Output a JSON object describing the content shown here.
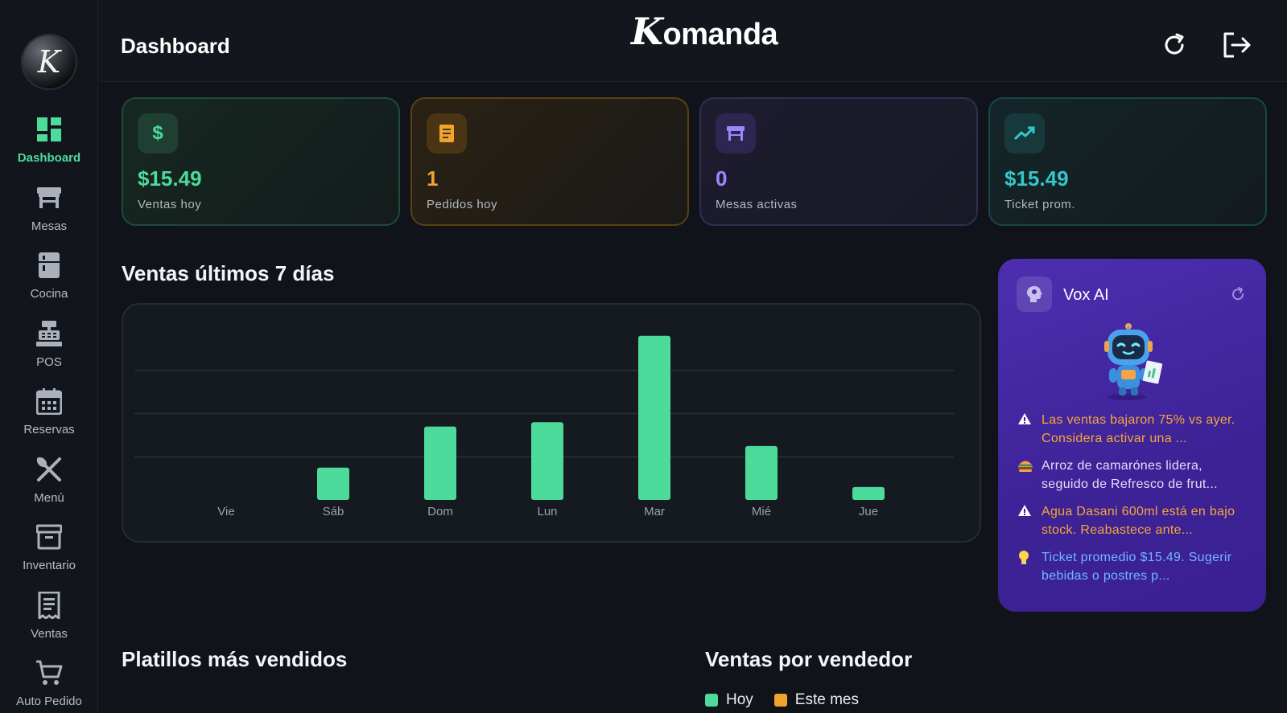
{
  "sidebar": {
    "logo_letter": "K",
    "items": [
      {
        "label": "Dashboard",
        "icon": "dashboard-grid-icon",
        "active": true
      },
      {
        "label": "Mesas",
        "icon": "table-icon"
      },
      {
        "label": "Cocina",
        "icon": "fridge-icon"
      },
      {
        "label": "POS",
        "icon": "cash-register-icon"
      },
      {
        "label": "Reservas",
        "icon": "calendar-icon"
      },
      {
        "label": "Menú",
        "icon": "utensils-icon"
      },
      {
        "label": "Inventario",
        "icon": "archive-icon"
      },
      {
        "label": "Ventas",
        "icon": "receipt-icon"
      },
      {
        "label": "Auto Pedido",
        "icon": "cart-icon"
      }
    ]
  },
  "header": {
    "title": "Dashboard",
    "brand_k": "K",
    "brand_rest": "omanda",
    "refresh_icon": "refresh-icon",
    "logout_icon": "logout-icon"
  },
  "stats": [
    {
      "value": "$15.49",
      "label": "Ventas hoy",
      "icon": "dollar-icon",
      "color": "#4ddb9c"
    },
    {
      "value": "1",
      "label": "Pedidos hoy",
      "icon": "order-receipt-icon",
      "color": "#f0a42c"
    },
    {
      "value": "0",
      "label": "Mesas activas",
      "icon": "table-icon",
      "color": "#9f86ff"
    },
    {
      "value": "$15.49",
      "label": "Ticket prom.",
      "icon": "trend-up-icon",
      "color": "#33c7c9"
    }
  ],
  "sales_chart": {
    "title": "Ventas últimos 7 días"
  },
  "chart_data": {
    "type": "bar",
    "categories": [
      "Vie",
      "Sáb",
      "Dom",
      "Lun",
      "Mar",
      "Mié",
      "Jue"
    ],
    "values": [
      0,
      15,
      34,
      36,
      76,
      25,
      6
    ],
    "ylim": [
      0,
      80
    ],
    "grid": true,
    "color": "#4ddb9c"
  },
  "vox": {
    "title": "Vox AI",
    "icon": "brain-icon",
    "tips": [
      {
        "type": "warn",
        "icon": "warning-icon",
        "text": "Las ventas bajaron 75% vs ayer. Considera activar una ..."
      },
      {
        "type": "food",
        "icon": "burger-icon",
        "text": "Arroz de camarónes lidera, seguido de Refresco de frut..."
      },
      {
        "type": "warn",
        "icon": "warning-icon",
        "text": "Agua Dasani 600ml está en bajo stock. Reabastece ante..."
      },
      {
        "type": "idea",
        "icon": "lightbulb-icon",
        "text": "Ticket promedio $15.49. Sugerir bebidas o postres p..."
      }
    ]
  },
  "top_dishes": {
    "title": "Platillos más vendidos"
  },
  "sellers": {
    "title": "Ventas por vendedor",
    "legend": [
      {
        "label": "Hoy",
        "color": "#4ddb9c"
      },
      {
        "label": "Este mes",
        "color": "#f0a42c"
      }
    ]
  }
}
